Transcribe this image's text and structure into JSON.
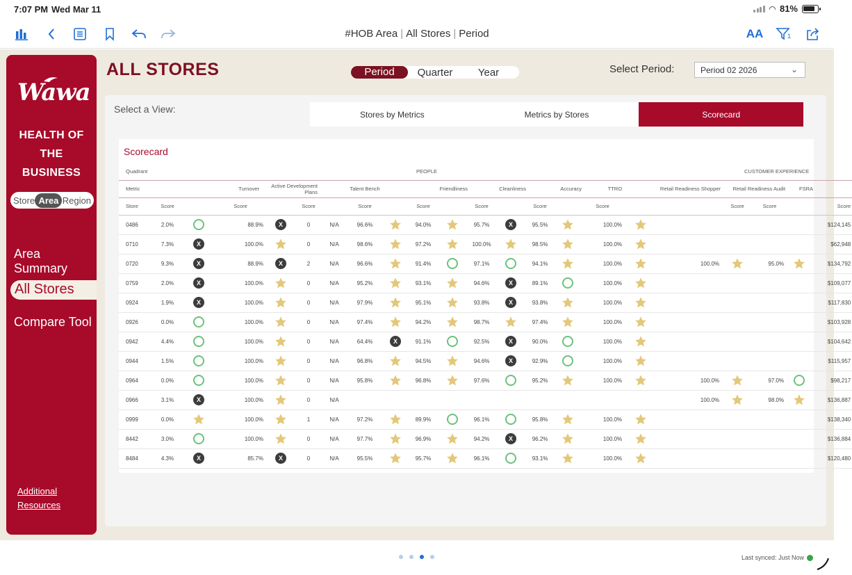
{
  "status_bar": {
    "time": "7:07 PM",
    "date": "Wed Mar 11",
    "battery": "81%"
  },
  "toolbar": {
    "title_parts": [
      "#HOB Area",
      "All Stores",
      "Period"
    ],
    "text_size_label": "AA",
    "filter_badge": "1"
  },
  "sidebar": {
    "logo": "Wawa",
    "heading_lines": [
      "HEALTH OF",
      "THE",
      "BUSINESS"
    ],
    "level_options": [
      "Store",
      "Area",
      "Region"
    ],
    "level_selected": "Area",
    "nav": [
      "Area Summary",
      "All Stores",
      "Compare Tool"
    ],
    "nav_active": "All Stores",
    "resources_lines": [
      "Additional",
      "Resources"
    ]
  },
  "header": {
    "title": "ALL STORES",
    "period_options": [
      "Period",
      "Quarter",
      "Year"
    ],
    "period_selected": "Period",
    "select_label": "Select Period:",
    "select_value": "Period 02 2026"
  },
  "view": {
    "label": "Select a View:",
    "tabs": [
      "Stores by Metrics",
      "Metrics by Stores",
      "Scorecard"
    ],
    "active": "Scorecard"
  },
  "scorecard": {
    "title": "Scorecard",
    "quadrant_label": "Quadrant",
    "quadrants": [
      "PEOPLE",
      "CUSTOMER EXPERIENCE"
    ],
    "metric_label": "Metric",
    "metrics": [
      "Turnover",
      "Active Development Plans",
      "Talent Bench",
      "Friendliness",
      "Cleanliness",
      "Accuracy",
      "TTRO",
      "Retail Readiness Shopper",
      "Retail Readiness Audit",
      "FSRA"
    ],
    "store_label": "Store",
    "score_label": "Score",
    "rows": [
      {
        "store": "0486",
        "turnover": "2.0%",
        "turnover_i": "circle",
        "adp": "88.9%",
        "adp_i": "x",
        "tb": "0",
        "tb_s": "N/A",
        "fr": "96.6%",
        "fr_i": "star",
        "cl": "94.0%",
        "cl_i": "star",
        "ac": "95.7%",
        "ac_i": "x",
        "tt": "95.5%",
        "tt_i": "star",
        "rrs": "100.0%",
        "rrs_i": "star",
        "rra": "",
        "rra_i": "",
        "fsra": "",
        "fsra_i": "",
        "sales": "$124,145"
      },
      {
        "store": "0710",
        "turnover": "7.3%",
        "turnover_i": "x",
        "adp": "100.0%",
        "adp_i": "star",
        "tb": "0",
        "tb_s": "N/A",
        "fr": "98.6%",
        "fr_i": "star",
        "cl": "97.2%",
        "cl_i": "star",
        "ac": "100.0%",
        "ac_i": "star",
        "tt": "98.5%",
        "tt_i": "star",
        "rrs": "100.0%",
        "rrs_i": "star",
        "rra": "",
        "rra_i": "",
        "fsra": "",
        "fsra_i": "",
        "sales": "$62,948"
      },
      {
        "store": "0720",
        "turnover": "9.3%",
        "turnover_i": "x",
        "adp": "88.9%",
        "adp_i": "x",
        "tb": "2",
        "tb_s": "N/A",
        "fr": "96.6%",
        "fr_i": "star",
        "cl": "91.4%",
        "cl_i": "circle",
        "ac": "97.1%",
        "ac_i": "circle",
        "tt": "94.1%",
        "tt_i": "star",
        "rrs": "100.0%",
        "rrs_i": "star",
        "rra": "100.0%",
        "rra_i": "star",
        "fsra": "95.0%",
        "fsra_i": "star",
        "sales": "$134,792"
      },
      {
        "store": "0759",
        "turnover": "2.0%",
        "turnover_i": "x",
        "adp": "100.0%",
        "adp_i": "star",
        "tb": "0",
        "tb_s": "N/A",
        "fr": "95.2%",
        "fr_i": "star",
        "cl": "93.1%",
        "cl_i": "star",
        "ac": "94.6%",
        "ac_i": "x",
        "tt": "89.1%",
        "tt_i": "circle",
        "rrs": "100.0%",
        "rrs_i": "star",
        "rra": "",
        "rra_i": "",
        "fsra": "",
        "fsra_i": "",
        "sales": "$109,077"
      },
      {
        "store": "0924",
        "turnover": "1.9%",
        "turnover_i": "x",
        "adp": "100.0%",
        "adp_i": "star",
        "tb": "0",
        "tb_s": "N/A",
        "fr": "97.9%",
        "fr_i": "star",
        "cl": "95.1%",
        "cl_i": "star",
        "ac": "93.8%",
        "ac_i": "x",
        "tt": "93.8%",
        "tt_i": "star",
        "rrs": "100.0%",
        "rrs_i": "star",
        "rra": "",
        "rra_i": "",
        "fsra": "",
        "fsra_i": "",
        "sales": "$117,830"
      },
      {
        "store": "0926",
        "turnover": "0.0%",
        "turnover_i": "circle",
        "adp": "100.0%",
        "adp_i": "star",
        "tb": "0",
        "tb_s": "N/A",
        "fr": "97.4%",
        "fr_i": "star",
        "cl": "94.2%",
        "cl_i": "star",
        "ac": "98.7%",
        "ac_i": "star",
        "tt": "97.4%",
        "tt_i": "star",
        "rrs": "100.0%",
        "rrs_i": "star",
        "rra": "",
        "rra_i": "",
        "fsra": "",
        "fsra_i": "",
        "sales": "$103,928"
      },
      {
        "store": "0942",
        "turnover": "4.4%",
        "turnover_i": "circle",
        "adp": "100.0%",
        "adp_i": "star",
        "tb": "0",
        "tb_s": "N/A",
        "fr": "64.4%",
        "fr_i": "x",
        "cl": "91.1%",
        "cl_i": "circle",
        "ac": "92.5%",
        "ac_i": "x",
        "tt": "90.0%",
        "tt_i": "circle",
        "rrs": "100.0%",
        "rrs_i": "star",
        "rra": "",
        "rra_i": "",
        "fsra": "",
        "fsra_i": "",
        "sales": "$104,642"
      },
      {
        "store": "0944",
        "turnover": "1.5%",
        "turnover_i": "circle",
        "adp": "100.0%",
        "adp_i": "star",
        "tb": "0",
        "tb_s": "N/A",
        "fr": "96.8%",
        "fr_i": "star",
        "cl": "94.5%",
        "cl_i": "star",
        "ac": "94.6%",
        "ac_i": "x",
        "tt": "92.9%",
        "tt_i": "circle",
        "rrs": "100.0%",
        "rrs_i": "star",
        "rra": "",
        "rra_i": "",
        "fsra": "",
        "fsra_i": "",
        "sales": "$115,957"
      },
      {
        "store": "0964",
        "turnover": "0.0%",
        "turnover_i": "circle",
        "adp": "100.0%",
        "adp_i": "star",
        "tb": "0",
        "tb_s": "N/A",
        "fr": "95.8%",
        "fr_i": "star",
        "cl": "96.8%",
        "cl_i": "star",
        "ac": "97.6%",
        "ac_i": "circle",
        "tt": "95.2%",
        "tt_i": "star",
        "rrs": "100.0%",
        "rrs_i": "star",
        "rra": "100.0%",
        "rra_i": "star",
        "fsra": "97.0%",
        "fsra_i": "circle",
        "sales": "$98,217"
      },
      {
        "store": "0966",
        "turnover": "3.1%",
        "turnover_i": "x",
        "adp": "100.0%",
        "adp_i": "star",
        "tb": "0",
        "tb_s": "N/A",
        "fr": "",
        "fr_i": "",
        "cl": "",
        "cl_i": "",
        "ac": "",
        "ac_i": "",
        "tt": "",
        "tt_i": "",
        "rrs": "",
        "rrs_i": "",
        "rra": "100.0%",
        "rra_i": "star",
        "fsra": "98.0%",
        "fsra_i": "star",
        "sales": "$136,887"
      },
      {
        "store": "0999",
        "turnover": "0.0%",
        "turnover_i": "star",
        "adp": "100.0%",
        "adp_i": "star",
        "tb": "1",
        "tb_s": "N/A",
        "fr": "97.2%",
        "fr_i": "star",
        "cl": "89.9%",
        "cl_i": "circle",
        "ac": "96.1%",
        "ac_i": "circle",
        "tt": "95.8%",
        "tt_i": "star",
        "rrs": "100.0%",
        "rrs_i": "star",
        "rra": "",
        "rra_i": "",
        "fsra": "",
        "fsra_i": "",
        "sales": "$138,340"
      },
      {
        "store": "8442",
        "turnover": "3.0%",
        "turnover_i": "circle",
        "adp": "100.0%",
        "adp_i": "star",
        "tb": "0",
        "tb_s": "N/A",
        "fr": "97.7%",
        "fr_i": "star",
        "cl": "96.9%",
        "cl_i": "star",
        "ac": "94.2%",
        "ac_i": "x",
        "tt": "96.2%",
        "tt_i": "star",
        "rrs": "100.0%",
        "rrs_i": "star",
        "rra": "",
        "rra_i": "",
        "fsra": "",
        "fsra_i": "",
        "sales": "$136,884"
      },
      {
        "store": "8484",
        "turnover": "4.3%",
        "turnover_i": "x",
        "adp": "85.7%",
        "adp_i": "x",
        "tb": "0",
        "tb_s": "N/A",
        "fr": "95.5%",
        "fr_i": "star",
        "cl": "95.7%",
        "cl_i": "star",
        "ac": "96.1%",
        "ac_i": "circle",
        "tt": "93.1%",
        "tt_i": "star",
        "rrs": "100.0%",
        "rrs_i": "star",
        "rra": "",
        "rra_i": "",
        "fsra": "",
        "fsra_i": "",
        "sales": "$120,480"
      }
    ]
  },
  "footer": {
    "page_count": 4,
    "page_current": 3,
    "sync_text": "Last synced: Just Now"
  },
  "colors": {
    "brand": "#a80a2a",
    "title": "#7b1122",
    "star": "#e3c879",
    "circle": "#6cc17b",
    "x": "#3c3c3c",
    "ios_blue": "#1f6fd6"
  }
}
